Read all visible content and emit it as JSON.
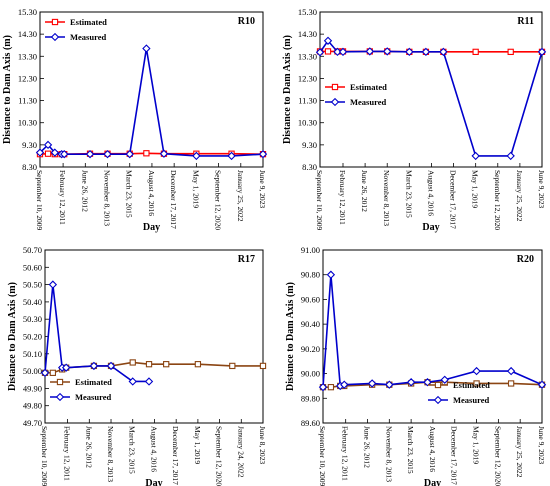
{
  "chart_data": [
    {
      "type": "line",
      "title": "R10",
      "xlabel": "Day",
      "ylabel": "Distance to Dam Axis (m)",
      "ylim": [
        8.3,
        15.3
      ],
      "yticks": [
        "8.30",
        "9.30",
        "10.30",
        "11.30",
        "12.30",
        "13.30",
        "14.30",
        "15.30"
      ],
      "xticks": [
        {
          "label": "September 10, 2009",
          "date": "2009-09-10"
        },
        {
          "label": "February 12, 2011",
          "date": "2011-02-12"
        },
        {
          "label": "June 26, 2012",
          "date": "2012-06-26"
        },
        {
          "label": "November 8, 2013",
          "date": "2013-11-08"
        },
        {
          "label": "March 23, 2015",
          "date": "2015-03-23"
        },
        {
          "label": "August 4, 2016",
          "date": "2016-08-04"
        },
        {
          "label": "December 17, 2017",
          "date": "2017-12-17"
        },
        {
          "label": "May 1, 2019",
          "date": "2019-05-01"
        },
        {
          "label": "September 12, 2020",
          "date": "2020-09-12"
        },
        {
          "label": "January 25, 2022",
          "date": "2022-01-25"
        },
        {
          "label": "June 9, 2023",
          "date": "2023-06-09"
        }
      ],
      "xlim": [
        "2009-09-10",
        "2023-06-09"
      ],
      "legend_position": "top-left",
      "series": [
        {
          "name": "Estimated",
          "color": "#ff0000",
          "marker": "square",
          "points": [
            {
              "x": "2009-09-10",
              "y": 8.88
            },
            {
              "x": "2010-03-10",
              "y": 8.9
            },
            {
              "x": "2010-08-10",
              "y": 8.88
            },
            {
              "x": "2011-01-10",
              "y": 8.88
            },
            {
              "x": "2011-03-10",
              "y": 8.88
            },
            {
              "x": "2012-10-10",
              "y": 8.9
            },
            {
              "x": "2013-11-08",
              "y": 8.9
            },
            {
              "x": "2015-03-23",
              "y": 8.9
            },
            {
              "x": "2016-04-01",
              "y": 8.92
            },
            {
              "x": "2017-05-01",
              "y": 8.9
            },
            {
              "x": "2019-05-01",
              "y": 8.9
            },
            {
              "x": "2021-07-01",
              "y": 8.9
            },
            {
              "x": "2023-06-09",
              "y": 8.88
            }
          ]
        },
        {
          "name": "Measured",
          "color": "#0000cc",
          "marker": "diamond",
          "points": [
            {
              "x": "2009-09-10",
              "y": 8.95
            },
            {
              "x": "2010-03-10",
              "y": 9.3
            },
            {
              "x": "2010-08-10",
              "y": 8.95
            },
            {
              "x": "2011-01-10",
              "y": 8.88
            },
            {
              "x": "2011-03-10",
              "y": 8.88
            },
            {
              "x": "2012-10-10",
              "y": 8.88
            },
            {
              "x": "2013-11-08",
              "y": 8.88
            },
            {
              "x": "2015-03-23",
              "y": 8.88
            },
            {
              "x": "2016-04-01",
              "y": 13.65
            },
            {
              "x": "2017-05-01",
              "y": 8.9
            },
            {
              "x": "2019-05-01",
              "y": 8.8
            },
            {
              "x": "2021-07-01",
              "y": 8.8
            },
            {
              "x": "2023-06-09",
              "y": 8.88
            }
          ]
        }
      ]
    },
    {
      "type": "line",
      "title": "R11",
      "xlabel": "Day",
      "ylabel": "Distance to Dam Axis (m)",
      "ylim": [
        8.3,
        15.3
      ],
      "yticks": [
        "8.30",
        "9.30",
        "10.30",
        "11.30",
        "12.30",
        "13.30",
        "14.30",
        "15.30"
      ],
      "xticks": [
        {
          "label": "September 10, 2009",
          "date": "2009-09-10"
        },
        {
          "label": "February 12, 2011",
          "date": "2011-02-12"
        },
        {
          "label": "June 26, 2012",
          "date": "2012-06-26"
        },
        {
          "label": "November 8, 2013",
          "date": "2013-11-08"
        },
        {
          "label": "March 23, 2015",
          "date": "2015-03-23"
        },
        {
          "label": "August 4, 2016",
          "date": "2016-08-04"
        },
        {
          "label": "December 17, 2017",
          "date": "2017-12-17"
        },
        {
          "label": "May 1, 2019",
          "date": "2019-05-01"
        },
        {
          "label": "September 12, 2020",
          "date": "2020-09-12"
        },
        {
          "label": "January 25, 2022",
          "date": "2022-01-25"
        },
        {
          "label": "June 9, 2023",
          "date": "2023-06-09"
        }
      ],
      "xlim": [
        "2009-09-10",
        "2023-06-09"
      ],
      "legend_position": "center-left",
      "series": [
        {
          "name": "Estimated",
          "color": "#ff0000",
          "marker": "square",
          "points": [
            {
              "x": "2009-09-10",
              "y": 13.52
            },
            {
              "x": "2010-03-10",
              "y": 13.52
            },
            {
              "x": "2010-10-10",
              "y": 13.52
            },
            {
              "x": "2011-02-12",
              "y": 13.52
            },
            {
              "x": "2012-10-10",
              "y": 13.52
            },
            {
              "x": "2013-11-08",
              "y": 13.52
            },
            {
              "x": "2015-03-23",
              "y": 13.5
            },
            {
              "x": "2016-04-01",
              "y": 13.5
            },
            {
              "x": "2017-05-01",
              "y": 13.5
            },
            {
              "x": "2019-05-01",
              "y": 13.5
            },
            {
              "x": "2021-07-01",
              "y": 13.5
            },
            {
              "x": "2023-06-09",
              "y": 13.5
            }
          ]
        },
        {
          "name": "Measured",
          "color": "#0000cc",
          "marker": "diamond",
          "points": [
            {
              "x": "2009-09-10",
              "y": 13.48
            },
            {
              "x": "2010-03-10",
              "y": 14.0
            },
            {
              "x": "2010-10-10",
              "y": 13.5
            },
            {
              "x": "2011-02-12",
              "y": 13.5
            },
            {
              "x": "2012-10-10",
              "y": 13.52
            },
            {
              "x": "2013-11-08",
              "y": 13.52
            },
            {
              "x": "2015-03-23",
              "y": 13.5
            },
            {
              "x": "2016-04-01",
              "y": 13.5
            },
            {
              "x": "2017-05-01",
              "y": 13.5
            },
            {
              "x": "2019-05-01",
              "y": 8.8
            },
            {
              "x": "2021-07-01",
              "y": 8.8
            },
            {
              "x": "2023-06-09",
              "y": 13.5
            }
          ]
        }
      ]
    },
    {
      "type": "line",
      "title": "R17",
      "xlabel": "Day",
      "ylabel": "Distance to Dam Axis (m)",
      "ylim": [
        49.7,
        50.7
      ],
      "yticks": [
        "49.70",
        "49.80",
        "49.90",
        "50.00",
        "50.10",
        "50.20",
        "50.30",
        "50.40",
        "50.50",
        "50.60",
        "50.70"
      ],
      "xticks": [
        {
          "label": "September 10, 2009",
          "date": "2009-09-10"
        },
        {
          "label": "February 12, 2011",
          "date": "2011-02-12"
        },
        {
          "label": "June 26, 2012",
          "date": "2012-06-26"
        },
        {
          "label": "November 8, 2013",
          "date": "2013-11-08"
        },
        {
          "label": "March 23, 2015",
          "date": "2015-03-23"
        },
        {
          "label": "August 4, 2016",
          "date": "2016-08-04"
        },
        {
          "label": "December 17, 2017",
          "date": "2017-12-17"
        },
        {
          "label": "May 1, 2019",
          "date": "2019-05-01"
        },
        {
          "label": "September 12, 2020",
          "date": "2020-09-12"
        },
        {
          "label": "January 24, 2022",
          "date": "2022-01-24"
        },
        {
          "label": "June 8, 2023",
          "date": "2023-06-08"
        }
      ],
      "xlim": [
        "2009-09-10",
        "2023-06-08"
      ],
      "legend_position": "bottom-left",
      "series": [
        {
          "name": "Estimated",
          "color": "#8b4513",
          "marker": "square",
          "points": [
            {
              "x": "2009-09-10",
              "y": 49.99
            },
            {
              "x": "2010-03-10",
              "y": 49.99
            },
            {
              "x": "2010-10-10",
              "y": 50.01
            },
            {
              "x": "2011-01-10",
              "y": 50.02
            },
            {
              "x": "2012-10-10",
              "y": 50.03
            },
            {
              "x": "2013-11-08",
              "y": 50.03
            },
            {
              "x": "2015-03-23",
              "y": 50.05
            },
            {
              "x": "2016-04-01",
              "y": 50.04
            },
            {
              "x": "2017-05-01",
              "y": 50.04
            },
            {
              "x": "2019-05-01",
              "y": 50.04
            },
            {
              "x": "2021-07-01",
              "y": 50.03
            },
            {
              "x": "2023-06-08",
              "y": 50.03
            }
          ]
        },
        {
          "name": "Measured",
          "color": "#0000cc",
          "marker": "diamond",
          "points": [
            {
              "x": "2009-09-10",
              "y": 49.99
            },
            {
              "x": "2010-03-10",
              "y": 50.5
            },
            {
              "x": "2010-10-10",
              "y": 50.02
            },
            {
              "x": "2011-01-10",
              "y": 50.02
            },
            {
              "x": "2012-10-10",
              "y": 50.03
            },
            {
              "x": "2013-11-08",
              "y": 50.03
            },
            {
              "x": "2015-03-23",
              "y": 49.94
            },
            {
              "x": "2016-04-01",
              "y": 49.94
            }
          ]
        }
      ]
    },
    {
      "type": "line",
      "title": "R20",
      "xlabel": "Day",
      "ylabel": "Distance to Dam Axis (m)",
      "ylim": [
        89.6,
        91.0
      ],
      "yticks": [
        "89.60",
        "89.80",
        "90.00",
        "90.20",
        "90.40",
        "90.60",
        "90.80",
        "91.00"
      ],
      "xticks": [
        {
          "label": "September 10, 2009",
          "date": "2009-09-10"
        },
        {
          "label": "February 12, 2011",
          "date": "2011-02-12"
        },
        {
          "label": "June 26, 2012",
          "date": "2012-06-26"
        },
        {
          "label": "November 8, 2013",
          "date": "2013-11-08"
        },
        {
          "label": "March 23, 2015",
          "date": "2015-03-23"
        },
        {
          "label": "August 4, 2016",
          "date": "2016-08-04"
        },
        {
          "label": "December 17, 2017",
          "date": "2017-12-17"
        },
        {
          "label": "May 1, 2019",
          "date": "2019-05-01"
        },
        {
          "label": "September 12, 2020",
          "date": "2020-09-12"
        },
        {
          "label": "January 25, 2022",
          "date": "2022-01-25"
        },
        {
          "label": "June 9, 2023",
          "date": "2023-06-09"
        }
      ],
      "xlim": [
        "2009-09-10",
        "2023-06-09"
      ],
      "legend_position": "bottom-right",
      "series": [
        {
          "name": "Estimated",
          "color": "#8b4513",
          "marker": "square",
          "points": [
            {
              "x": "2009-09-10",
              "y": 89.89
            },
            {
              "x": "2010-03-10",
              "y": 89.89
            },
            {
              "x": "2010-10-10",
              "y": 89.9
            },
            {
              "x": "2011-01-10",
              "y": 89.9
            },
            {
              "x": "2012-10-10",
              "y": 89.91
            },
            {
              "x": "2013-11-08",
              "y": 89.91
            },
            {
              "x": "2015-03-23",
              "y": 89.92
            },
            {
              "x": "2016-04-01",
              "y": 89.93
            },
            {
              "x": "2017-05-01",
              "y": 89.93
            },
            {
              "x": "2019-05-01",
              "y": 89.92
            },
            {
              "x": "2021-07-01",
              "y": 89.92
            },
            {
              "x": "2023-06-09",
              "y": 89.91
            }
          ]
        },
        {
          "name": "Measured",
          "color": "#0000cc",
          "marker": "diamond",
          "points": [
            {
              "x": "2009-09-10",
              "y": 89.89
            },
            {
              "x": "2010-03-10",
              "y": 90.8
            },
            {
              "x": "2010-10-10",
              "y": 89.9
            },
            {
              "x": "2011-01-10",
              "y": 89.91
            },
            {
              "x": "2012-10-10",
              "y": 89.92
            },
            {
              "x": "2013-11-08",
              "y": 89.91
            },
            {
              "x": "2015-03-23",
              "y": 89.93
            },
            {
              "x": "2016-04-01",
              "y": 89.93
            },
            {
              "x": "2017-05-01",
              "y": 89.95
            },
            {
              "x": "2019-05-01",
              "y": 90.02
            },
            {
              "x": "2021-07-01",
              "y": 90.02
            },
            {
              "x": "2023-06-09",
              "y": 89.91
            }
          ]
        }
      ]
    }
  ]
}
